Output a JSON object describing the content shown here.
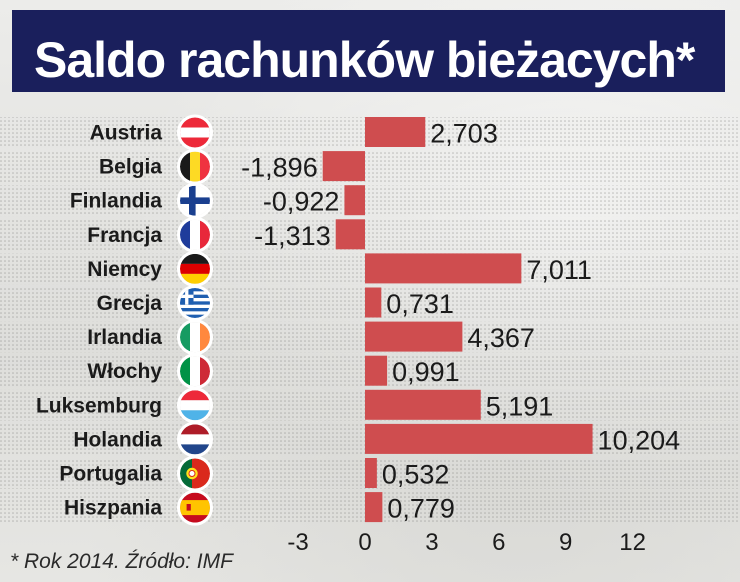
{
  "title": "Saldo rachunków bieżacych*",
  "footnote": "* Rok 2014. Źródło: IMF",
  "colors": {
    "bar": "#cf4d4f",
    "title_bg": "#1a1f5c",
    "title_text": "#ffffff"
  },
  "chart_data": {
    "type": "bar",
    "orientation": "horizontal",
    "title": "Saldo rachunków bieżacych*",
    "categories": [
      "Austria",
      "Belgia",
      "Finlandia",
      "Francja",
      "Niemcy",
      "Grecja",
      "Irlandia",
      "Włochy",
      "Luksemburg",
      "Holandia",
      "Portugalia",
      "Hiszpania"
    ],
    "values": [
      2.703,
      -1.896,
      -0.922,
      -1.313,
      7.011,
      0.731,
      4.367,
      0.991,
      5.191,
      10.204,
      0.532,
      0.779
    ],
    "value_labels": [
      "2,703",
      "-1,896",
      "-0,922",
      "-1,313",
      "7,011",
      "0,731",
      "4,367",
      "0,991",
      "5,191",
      "10,204",
      "0,532",
      "0,779"
    ],
    "flags": [
      "austria-flag",
      "belgium-flag",
      "finland-flag",
      "france-flag",
      "germany-flag",
      "greece-flag",
      "ireland-flag",
      "italy-flag",
      "luxembourg-flag",
      "netherlands-flag",
      "portugal-flag",
      "spain-flag"
    ],
    "x_ticks": [
      -3,
      0,
      3,
      6,
      9,
      12
    ],
    "x_tick_labels": [
      "-3",
      "0",
      "3",
      "6",
      "9",
      "12"
    ],
    "xlim": [
      -3,
      12
    ],
    "grid": false,
    "legend": "none"
  }
}
